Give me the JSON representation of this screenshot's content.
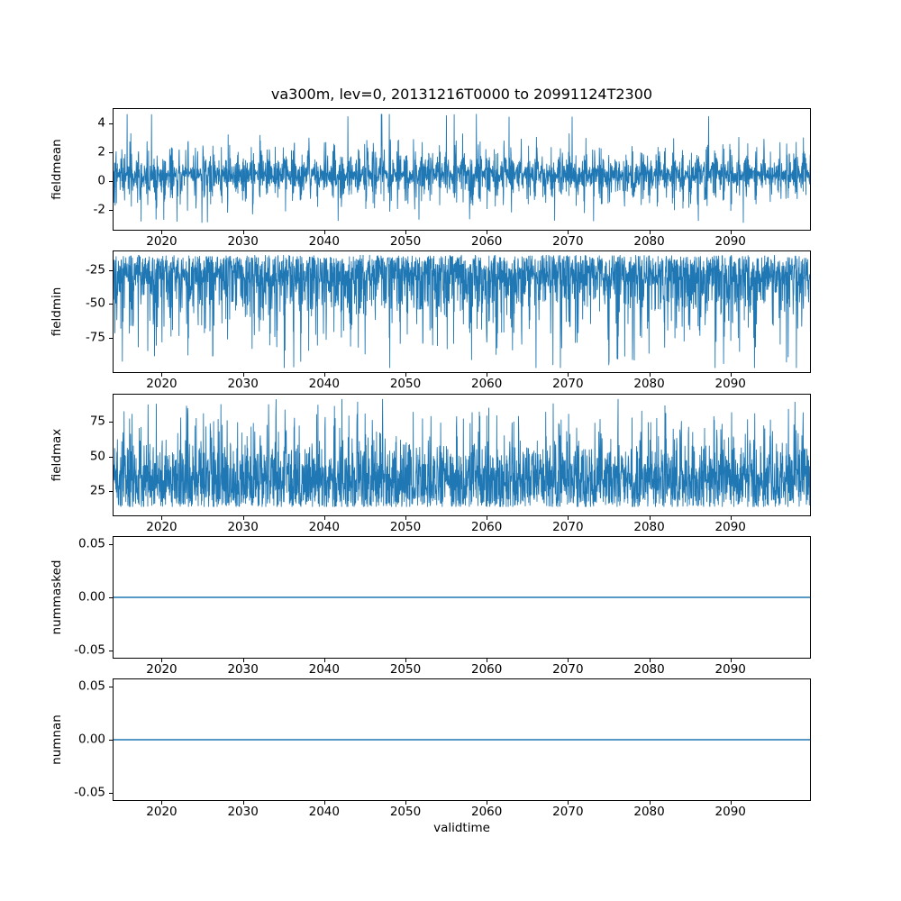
{
  "figure": {
    "title": "va300m, lev=0, 20131216T0000 to 20991124T2300",
    "xlabel": "validtime",
    "variable": "va300m",
    "level": "lev=0",
    "time_start": "20131216T0000",
    "time_end": "20991124T2300",
    "line_color": "#1f77b4",
    "xlim": [
      2013.96,
      2099.9
    ],
    "x_tick_values": [
      2020,
      2030,
      2040,
      2050,
      2060,
      2070,
      2080,
      2090
    ],
    "x_tick_labels": [
      "2020",
      "2030",
      "2040",
      "2050",
      "2060",
      "2070",
      "2080",
      "2090"
    ]
  },
  "chart_data": [
    {
      "type": "line",
      "name": "fieldmean",
      "ylabel": "fieldmean",
      "y_tick_values": [
        -2,
        0,
        2,
        4
      ],
      "y_tick_labels": [
        "-2",
        "0",
        "2",
        "4"
      ],
      "ylim": [
        -3.4,
        5.05
      ],
      "series": [
        {
          "name": "fieldmean",
          "color": "#1f77b4",
          "summary": "dense noisy hourly series oscillating mostly between -2.3 and 3.6 with amplitude-modulated annual cycle, extremes about -2.8 and 4.7 (spike near 2091), mean near 0.5"
        }
      ],
      "gen": {
        "kind": "band",
        "n": 2800,
        "center": 0.45,
        "spread": 3.1,
        "period": 32.5,
        "clamp": [
          -2.85,
          4.65
        ],
        "seed": 11,
        "lw": 0.9
      }
    },
    {
      "type": "line",
      "name": "fieldmin",
      "ylabel": "fieldmin",
      "y_tick_values": [
        -75,
        -50,
        -25
      ],
      "y_tick_labels": [
        "-75",
        "-50",
        "-25"
      ],
      "ylim": [
        -101,
        -10.5
      ],
      "series": [
        {
          "name": "fieldmin",
          "color": "#1f77b4",
          "summary": "dense band between about -37 and -14 with frequent downward spikes to -60..-85, deepest spike about -97 near 2049"
        }
      ],
      "gen": {
        "kind": "spikes",
        "dir": -1,
        "n": 2800,
        "base": -14,
        "band": 23,
        "p": 0.25,
        "spike": 66,
        "period": 32.5,
        "clamp": [
          -97,
          -13
        ],
        "seed": 22,
        "lw": 0.9
      }
    },
    {
      "type": "line",
      "name": "fieldmax",
      "ylabel": "fieldmax",
      "y_tick_values": [
        25,
        50,
        75
      ],
      "y_tick_labels": [
        "25",
        "50",
        "75"
      ],
      "ylim": [
        7,
        95
      ],
      "series": [
        {
          "name": "fieldmax",
          "color": "#1f77b4",
          "summary": "dense band between about 14 and 45 with frequent upward spikes to 60..85, highest spike about 90 near 2049"
        }
      ],
      "gen": {
        "kind": "spikes",
        "dir": 1,
        "n": 2800,
        "base": 13,
        "band": 32,
        "p": 0.22,
        "spike": 50,
        "period": 32.5,
        "clamp": [
          14,
          91
        ],
        "seed": 33,
        "lw": 0.9
      }
    },
    {
      "type": "line",
      "name": "nummasked",
      "ylabel": "nummasked",
      "y_tick_values": [
        -0.05,
        0,
        0.05
      ],
      "y_tick_labels": [
        "-0.05",
        "0.00",
        "0.05"
      ],
      "ylim": [
        -0.0575,
        0.0575
      ],
      "series": [
        {
          "name": "nummasked",
          "color": "#1f77b4",
          "summary": "constant zero for entire period"
        }
      ],
      "gen": {
        "kind": "constant",
        "value": 0,
        "lw": 1.5
      }
    },
    {
      "type": "line",
      "name": "numnan",
      "ylabel": "numnan",
      "y_tick_values": [
        -0.05,
        0,
        0.05
      ],
      "y_tick_labels": [
        "-0.05",
        "0.00",
        "0.05"
      ],
      "ylim": [
        -0.0575,
        0.0575
      ],
      "series": [
        {
          "name": "numnan",
          "color": "#1f77b4",
          "summary": "constant zero for entire period"
        }
      ],
      "gen": {
        "kind": "constant",
        "value": 0,
        "lw": 1.5
      }
    }
  ]
}
